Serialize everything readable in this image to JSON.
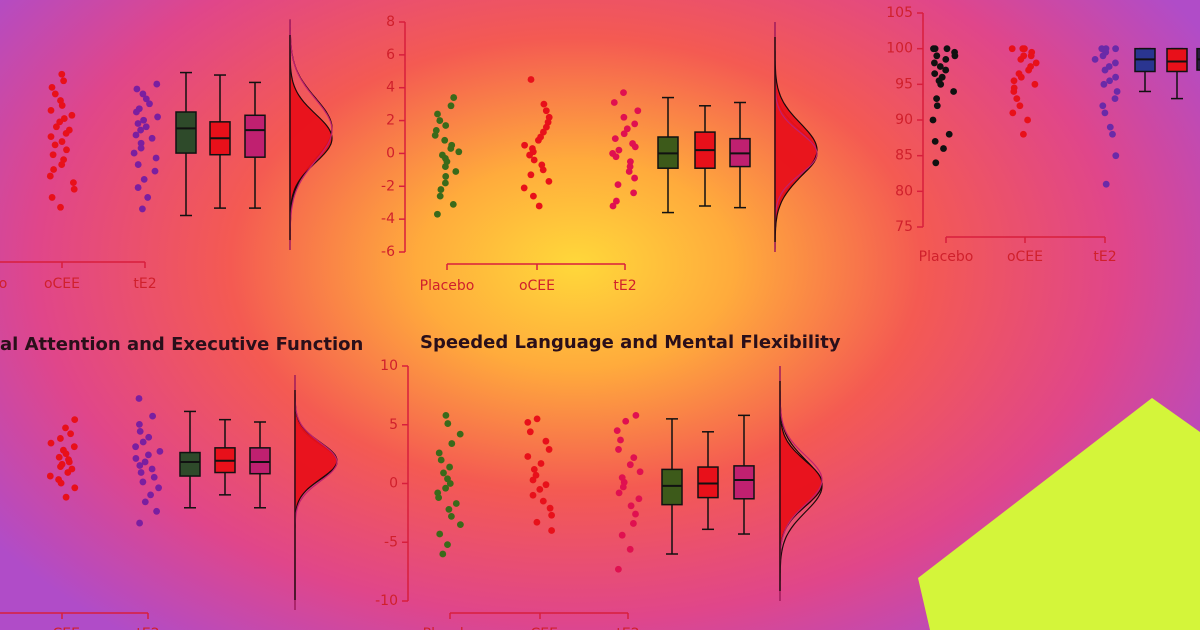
{
  "chart_data": [
    {
      "type": "raincloud",
      "categories": [
        "Placebo",
        "oCEE",
        "tE2"
      ],
      "ylim": [
        -6,
        8
      ],
      "groups": [
        {
          "color": "#3a6a1a",
          "values": []
        },
        {
          "color": "#e8101a",
          "values": [
            4.7,
            4.3,
            3.9,
            3.5,
            3.1,
            2.8,
            2.5,
            2.2,
            2.0,
            1.8,
            1.5,
            1.3,
            1.1,
            0.9,
            0.6,
            0.4,
            0.1,
            -0.2,
            -0.5,
            -0.8,
            -1.1,
            -1.5,
            -1.9,
            -2.3,
            -2.8,
            -3.4
          ]
        },
        {
          "color": "#7a1fa0",
          "values": [
            4.1,
            3.8,
            3.5,
            3.2,
            2.9,
            2.6,
            2.4,
            2.1,
            1.9,
            1.7,
            1.5,
            1.3,
            1.0,
            0.8,
            0.5,
            0.2,
            -0.1,
            -0.4,
            -0.8,
            -1.2,
            -1.7,
            -2.2,
            -2.8,
            -3.5
          ]
        }
      ],
      "boxes": [
        {
          "color": "#2e4a2a",
          "stats": [
            -3.9,
            -0.1,
            1.4,
            2.4,
            4.8
          ]
        },
        {
          "color": "#e8101a",
          "stats": [
            -3.45,
            -0.2,
            0.8,
            1.8,
            4.65
          ]
        },
        {
          "color": "#c02070",
          "stats": [
            -3.45,
            -0.35,
            1.3,
            2.2,
            4.2
          ]
        }
      ],
      "cloud": true,
      "cloud_color": "#e8101a"
    },
    {
      "type": "raincloud",
      "categories": [
        "Placebo",
        "oCEE",
        "tE2"
      ],
      "ylim": [
        -6,
        8
      ],
      "yticks": [
        -6,
        -4,
        -2,
        0,
        2,
        4,
        6,
        8
      ],
      "groups": [
        {
          "color": "#3a6a1a",
          "values": [
            3.4,
            2.9,
            2.4,
            2.0,
            1.7,
            1.4,
            1.1,
            0.8,
            0.5,
            0.3,
            0.1,
            -0.1,
            -0.3,
            -0.5,
            -0.8,
            -1.1,
            -1.4,
            -1.8,
            -2.2,
            -2.6,
            -3.1,
            -3.7
          ]
        },
        {
          "color": "#e8101a",
          "values": [
            4.5,
            3.0,
            2.6,
            2.2,
            1.9,
            1.6,
            1.3,
            1.0,
            0.8,
            0.5,
            0.3,
            0.1,
            -0.1,
            -0.4,
            -0.7,
            -1.0,
            -1.3,
            -1.7,
            -2.1,
            -2.6,
            -3.2
          ]
        },
        {
          "color": "#e01050",
          "values": [
            3.7,
            3.1,
            2.6,
            2.2,
            1.8,
            1.5,
            1.2,
            0.9,
            0.6,
            0.4,
            0.2,
            0,
            -0.2,
            -0.5,
            -0.8,
            -1.1,
            -1.5,
            -1.9,
            -2.4,
            -2.9,
            -3.2
          ]
        }
      ],
      "boxes": [
        {
          "color": "#3d5a1a",
          "stats": [
            -3.6,
            -0.9,
            0,
            1.0,
            3.4
          ]
        },
        {
          "color": "#e8101a",
          "stats": [
            -3.2,
            -0.9,
            0.2,
            1.3,
            2.9
          ]
        },
        {
          "color": "#c02070",
          "stats": [
            -3.3,
            -0.8,
            0,
            0.9,
            3.1
          ]
        }
      ],
      "cloud": true,
      "cloud_color": "#e8101a"
    },
    {
      "type": "raincloud",
      "categories": [
        "Placebo",
        "oCEE",
        "tE2"
      ],
      "ylim": [
        75,
        105
      ],
      "yticks": [
        75,
        80,
        85,
        90,
        95,
        100,
        105
      ],
      "groups": [
        {
          "color": "#111111",
          "values": [
            100,
            100,
            100,
            99.5,
            99,
            99,
            98.5,
            98,
            97.5,
            97,
            96.5,
            96,
            95.5,
            95,
            94,
            93,
            92,
            90,
            88,
            87,
            86,
            84
          ]
        },
        {
          "color": "#e8101a",
          "values": [
            100,
            100,
            100,
            99.5,
            99,
            99,
            98.5,
            98,
            97.5,
            97,
            96.5,
            96,
            95.5,
            95,
            94.5,
            94,
            93,
            92,
            91,
            90,
            88
          ]
        },
        {
          "color": "#6a2aa8",
          "values": [
            100,
            100,
            100,
            99.5,
            99,
            98.5,
            98,
            97.5,
            97,
            96,
            95.5,
            95,
            94,
            93,
            92,
            91,
            89,
            88,
            85,
            81
          ]
        }
      ],
      "boxes": [
        {
          "color": "#2a3590",
          "stats": [
            94,
            96.8,
            98.5,
            100,
            100
          ]
        },
        {
          "color": "#e8101a",
          "stats": [
            93,
            96.8,
            98.2,
            100,
            100
          ]
        },
        {
          "color": "#2a1a40",
          "stats": [
            94,
            97,
            98.5,
            100,
            100
          ]
        }
      ],
      "cloud": false,
      "cloud_color": "#e8101a"
    },
    {
      "type": "raincloud",
      "title": "al Attention and Executive Function",
      "categories": [
        "Placebo",
        "oCEE",
        "tE2"
      ],
      "ylim": [
        -10,
        10
      ],
      "groups": [
        {
          "color": "#3a6a1a",
          "values": []
        },
        {
          "color": "#e8101a",
          "values": [
            6.2,
            5.5,
            5.0,
            4.6,
            4.2,
            3.9,
            3.6,
            3.3,
            3.0,
            2.8,
            2.6,
            2.4,
            2.2,
            2.0,
            1.7,
            1.4,
            1.1,
            0.8,
            0.4,
            -0.4
          ]
        },
        {
          "color": "#7a1fa0",
          "values": [
            8.0,
            6.5,
            5.8,
            5.2,
            4.7,
            4.3,
            3.9,
            3.5,
            3.2,
            2.9,
            2.6,
            2.3,
            2.0,
            1.7,
            1.3,
            0.9,
            0.4,
            -0.2,
            -0.8,
            -1.6,
            -2.6
          ]
        }
      ],
      "boxes": [
        {
          "color": "#2e4a2a",
          "stats": [
            -1.3,
            1.4,
            2.6,
            3.4,
            6.9
          ]
        },
        {
          "color": "#e8101a",
          "stats": [
            -0.2,
            1.7,
            2.7,
            3.8,
            6.2
          ]
        },
        {
          "color": "#c02070",
          "stats": [
            -1.3,
            1.6,
            2.6,
            3.8,
            6.0
          ]
        }
      ],
      "cloud": true,
      "cloud_color": "#e8101a"
    },
    {
      "type": "raincloud",
      "title": "Speeded Language and Mental Flexibility",
      "categories": [
        "Placebo",
        "oCEE",
        "tE2"
      ],
      "ylim": [
        -10,
        10
      ],
      "yticks": [
        -10,
        -5,
        0,
        5,
        10
      ],
      "groups": [
        {
          "color": "#3a6a1a",
          "values": [
            5.8,
            5.1,
            4.2,
            3.4,
            2.6,
            2.0,
            1.4,
            0.9,
            0.4,
            0,
            -0.4,
            -0.8,
            -1.2,
            -1.7,
            -2.2,
            -2.8,
            -3.5,
            -4.3,
            -5.2,
            -6.0
          ]
        },
        {
          "color": "#e8101a",
          "values": [
            5.5,
            5.2,
            4.4,
            3.6,
            2.9,
            2.3,
            1.7,
            1.2,
            0.7,
            0.3,
            -0.1,
            -0.5,
            -1.0,
            -1.5,
            -2.1,
            -2.7,
            -3.3,
            -4.0
          ]
        },
        {
          "color": "#e01050",
          "values": [
            5.8,
            5.3,
            4.5,
            3.7,
            2.9,
            2.2,
            1.6,
            1.0,
            0.5,
            0.1,
            -0.3,
            -0.8,
            -1.3,
            -1.9,
            -2.6,
            -3.4,
            -4.4,
            -5.6,
            -7.3
          ]
        }
      ],
      "boxes": [
        {
          "color": "#3d5a1a",
          "stats": [
            -6.0,
            -1.8,
            -0.2,
            1.2,
            5.5
          ]
        },
        {
          "color": "#e8101a",
          "stats": [
            -3.9,
            -1.2,
            0,
            1.4,
            4.4
          ]
        },
        {
          "color": "#c02070",
          "stats": [
            -4.3,
            -1.3,
            0.3,
            1.5,
            5.8
          ]
        }
      ],
      "cloud": true,
      "cloud_color": "#e8101a"
    }
  ]
}
